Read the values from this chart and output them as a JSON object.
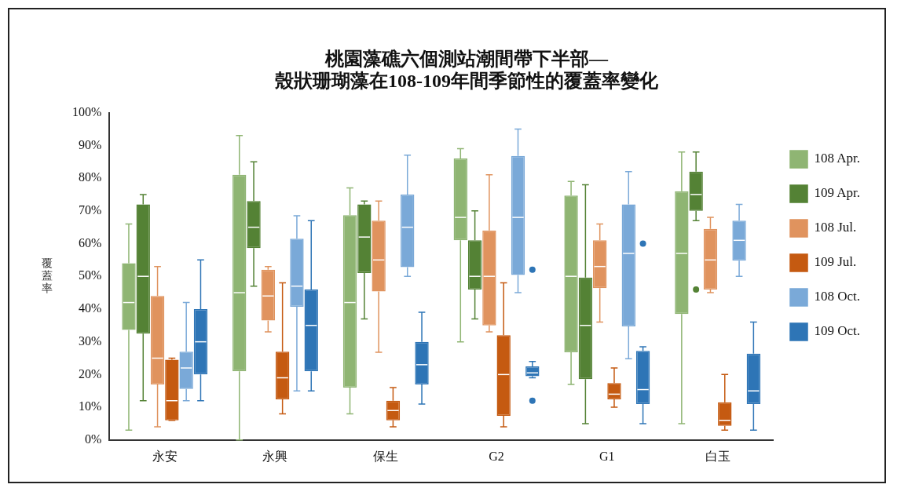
{
  "chart_data": {
    "type": "box",
    "title": [
      "桃園藻礁六個測站潮間帶下半部—",
      "殼狀珊瑚藻在108-109年間季節性的覆蓋率變化"
    ],
    "ylabel": "覆蓋率",
    "categories": [
      "永安",
      "永興",
      "保生",
      "G2",
      "G1",
      "白玉"
    ],
    "ylim": [
      0,
      100
    ],
    "yticks": [
      {
        "value": 0,
        "label": "0%"
      },
      {
        "value": 10,
        "label": "10%"
      },
      {
        "value": 20,
        "label": "20%"
      },
      {
        "value": 30,
        "label": "30%"
      },
      {
        "value": 40,
        "label": "40%"
      },
      {
        "value": 50,
        "label": "50%"
      },
      {
        "value": 60,
        "label": "60%"
      },
      {
        "value": 70,
        "label": "70%"
      },
      {
        "value": 80,
        "label": "80%"
      },
      {
        "value": 90,
        "label": "90%"
      },
      {
        "value": 100,
        "label": "100%"
      }
    ],
    "grid": false,
    "legend": "right",
    "series": [
      {
        "name": "108 Apr.",
        "color": "#8fb573",
        "boxes": [
          {
            "low": 3,
            "q1": 33.6,
            "median": 42,
            "q3": 54,
            "high": 66
          },
          {
            "low": 0,
            "q1": 21,
            "median": 45,
            "q3": 81,
            "high": 93
          },
          {
            "low": 8,
            "q1": 16,
            "median": 42,
            "q3": 68.7,
            "high": 77
          },
          {
            "low": 30,
            "q1": 61,
            "median": 68,
            "q3": 86,
            "high": 89
          },
          {
            "low": 17,
            "q1": 26.8,
            "median": 50,
            "q3": 74.7,
            "high": 79
          },
          {
            "low": 5,
            "q1": 38.5,
            "median": 57,
            "q3": 76,
            "high": 88
          }
        ]
      },
      {
        "name": "109 Apr.",
        "color": "#548235",
        "boxes": [
          {
            "low": 12,
            "q1": 32.5,
            "median": 50,
            "q3": 72,
            "high": 75
          },
          {
            "low": 47,
            "q1": 58.6,
            "median": 65,
            "q3": 73,
            "high": 85
          },
          {
            "low": 37,
            "q1": 51,
            "median": 62,
            "q3": 72,
            "high": 73
          },
          {
            "low": 37,
            "q1": 46,
            "median": 50,
            "q3": 61,
            "high": 70
          },
          {
            "low": 5,
            "q1": 18.6,
            "median": 35,
            "q3": 49.6,
            "high": 78
          },
          {
            "low": 67,
            "q1": 70,
            "median": 75,
            "q3": 82,
            "high": 88,
            "outliers": [
              46
            ]
          }
        ]
      },
      {
        "name": "108 Jul.",
        "color": "#e0935e",
        "boxes": [
          {
            "low": 4,
            "q1": 17,
            "median": 25,
            "q3": 44,
            "high": 53
          },
          {
            "low": 33,
            "q1": 36.5,
            "median": 44,
            "q3": 52,
            "high": 53
          },
          {
            "low": 26.8,
            "q1": 45.4,
            "median": 55,
            "q3": 67,
            "high": 73
          },
          {
            "low": 33,
            "q1": 35,
            "median": 50,
            "q3": 64,
            "high": 81
          },
          {
            "low": 36,
            "q1": 46.4,
            "median": 53,
            "q3": 61,
            "high": 66
          },
          {
            "low": 45,
            "q1": 46,
            "median": 55,
            "q3": 64.5,
            "high": 68
          }
        ]
      },
      {
        "name": "109 Jul.",
        "color": "#c55a11",
        "boxes": [
          {
            "low": 6,
            "q1": 6,
            "median": 12,
            "q3": 24.5,
            "high": 25
          },
          {
            "low": 8,
            "q1": 12.4,
            "median": 19,
            "q3": 27,
            "high": 48
          },
          {
            "low": 4,
            "q1": 6,
            "median": 9,
            "q3": 12,
            "high": 16
          },
          {
            "low": 4,
            "q1": 7.4,
            "median": 20,
            "q3": 32,
            "high": 48
          },
          {
            "low": 10,
            "q1": 12.4,
            "median": 14,
            "q3": 17.4,
            "high": 22
          },
          {
            "low": 3,
            "q1": 4.3,
            "median": 6,
            "q3": 11.5,
            "high": 20
          }
        ]
      },
      {
        "name": "108 Oct.",
        "color": "#7aa9d8",
        "boxes": [
          {
            "low": 12,
            "q1": 15.6,
            "median": 22,
            "q3": 27,
            "high": 42
          },
          {
            "low": 15,
            "q1": 40.7,
            "median": 47,
            "q3": 61.5,
            "high": 68.5
          },
          {
            "low": 50,
            "q1": 52.8,
            "median": 65,
            "q3": 75,
            "high": 87
          },
          {
            "low": 45,
            "q1": 50.4,
            "median": 68,
            "q3": 86.8,
            "high": 95
          },
          {
            "low": 24.8,
            "q1": 34.7,
            "median": 57,
            "q3": 72,
            "high": 82
          },
          {
            "low": 50,
            "q1": 54.8,
            "median": 61,
            "q3": 67,
            "high": 72
          }
        ]
      },
      {
        "name": "109 Oct.",
        "color": "#2e75b6",
        "boxes": [
          {
            "low": 12,
            "q1": 20,
            "median": 30,
            "q3": 40,
            "high": 55
          },
          {
            "low": 15,
            "q1": 21,
            "median": 35,
            "q3": 46,
            "high": 67
          },
          {
            "low": 11,
            "q1": 17,
            "median": 23,
            "q3": 30,
            "high": 39
          },
          {
            "low": 19,
            "q1": 19.5,
            "median": 20.5,
            "q3": 22.5,
            "high": 24,
            "outliers": [
              52,
              12
            ]
          },
          {
            "low": 5,
            "q1": 11,
            "median": 15.4,
            "q3": 27.2,
            "high": 28.5,
            "outliers": [
              60
            ]
          },
          {
            "low": 3,
            "q1": 11,
            "median": 15,
            "q3": 26.4,
            "high": 36
          }
        ]
      }
    ]
  }
}
